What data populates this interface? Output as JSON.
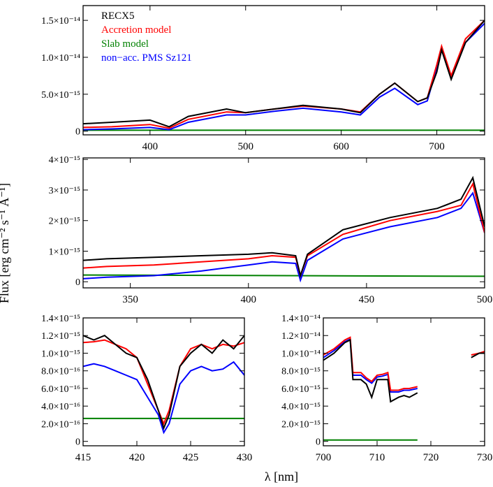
{
  "figure": {
    "ylabel": "Flux [erg cm⁻² s⁻¹ Å⁻¹]",
    "xlabel": "λ [nm]"
  },
  "colors": {
    "observed": "#000000",
    "accretion": "#ff0000",
    "slab": "#008000",
    "pms": "#0000ff"
  },
  "chart_data": [
    {
      "type": "line",
      "panel": "top",
      "xlim": [
        330,
        750
      ],
      "ylim": [
        -5e-16,
        1.7e-14
      ],
      "xticks": [
        400,
        500,
        600,
        700
      ],
      "xtick_labels": [
        "400",
        "500",
        "600",
        "700"
      ],
      "yticks": [
        0,
        5e-15,
        1e-14,
        1.5e-14
      ],
      "ytick_labels": [
        "0",
        "5.0×10⁻¹⁵",
        "1.0×10⁻¹⁴",
        "1.5×10⁻¹⁴"
      ],
      "legend": {
        "placement": "top-left",
        "entries": [
          "RECX5",
          "Accretion model",
          "Slab model",
          "non−acc. PMS Sz121"
        ]
      },
      "series": [
        {
          "name": "RECX5",
          "color": "#000000",
          "x": [
            330,
            360,
            400,
            420,
            440,
            480,
            500,
            530,
            560,
            600,
            620,
            640,
            656,
            680,
            690,
            700,
            705,
            715,
            730,
            750
          ],
          "y": [
            1e-15,
            1.2e-15,
            1.5e-15,
            6e-16,
            2e-15,
            3e-15,
            2.5e-15,
            3e-15,
            3.5e-15,
            3e-15,
            2.5e-15,
            5e-15,
            6.5e-15,
            4e-15,
            4.5e-15,
            8e-15,
            1.1e-14,
            7e-15,
            1.2e-14,
            1.5e-14
          ]
        },
        {
          "name": "Accretion model",
          "color": "#ff0000",
          "x": [
            330,
            360,
            400,
            420,
            440,
            480,
            500,
            530,
            560,
            600,
            620,
            640,
            656,
            680,
            690,
            700,
            705,
            715,
            730,
            750
          ],
          "y": [
            5e-16,
            6e-16,
            9e-16,
            4e-16,
            1.6e-15,
            2.6e-15,
            2.5e-15,
            3e-15,
            3.4e-15,
            3e-15,
            2.6e-15,
            5e-15,
            6.5e-15,
            4e-15,
            4.5e-15,
            9e-15,
            1.15e-14,
            7.5e-15,
            1.25e-14,
            1.5e-14
          ]
        },
        {
          "name": "Slab model",
          "color": "#008000",
          "x": [
            330,
            750
          ],
          "y": [
            1.2e-16,
            1.2e-16
          ]
        },
        {
          "name": "non−acc. PMS Sz121",
          "color": "#0000ff",
          "x": [
            330,
            360,
            400,
            420,
            440,
            480,
            500,
            530,
            560,
            600,
            620,
            640,
            656,
            680,
            690,
            700,
            705,
            715,
            730,
            750
          ],
          "y": [
            2e-16,
            3e-16,
            5e-16,
            2e-16,
            1.2e-15,
            2.2e-15,
            2.2e-15,
            2.7e-15,
            3.1e-15,
            2.6e-15,
            2.2e-15,
            4.6e-15,
            5.8e-15,
            3.6e-15,
            4.1e-15,
            8.6e-15,
            1.1e-14,
            7.2e-15,
            1.2e-14,
            1.46e-14
          ]
        }
      ]
    },
    {
      "type": "line",
      "panel": "middle",
      "xlim": [
        330,
        500
      ],
      "ylim": [
        -2e-16,
        4.05e-15
      ],
      "xticks": [
        350,
        400,
        450,
        500
      ],
      "xtick_labels": [
        "350",
        "400",
        "450",
        "500"
      ],
      "yticks": [
        0,
        1e-15,
        2e-15,
        3e-15,
        4e-15
      ],
      "ytick_labels": [
        "0",
        "1×10⁻¹⁵",
        "2×10⁻¹⁵",
        "3×10⁻¹⁵",
        "4×10⁻¹⁵"
      ],
      "series": [
        {
          "name": "RECX5",
          "color": "#000000",
          "x": [
            330,
            340,
            360,
            380,
            400,
            410,
            420,
            422,
            425,
            440,
            460,
            480,
            490,
            495,
            500
          ],
          "y": [
            7e-16,
            7.5e-16,
            8e-16,
            8.5e-16,
            9e-16,
            9.5e-16,
            8.5e-16,
            2e-16,
            9e-16,
            1.7e-15,
            2.1e-15,
            2.4e-15,
            2.7e-15,
            3.4e-15,
            1.8e-15
          ]
        },
        {
          "name": "Accretion model",
          "color": "#ff0000",
          "x": [
            330,
            340,
            360,
            380,
            400,
            410,
            420,
            422,
            425,
            440,
            460,
            480,
            490,
            495,
            500
          ],
          "y": [
            4.5e-16,
            5e-16,
            5.5e-16,
            6.5e-16,
            7.5e-16,
            8.5e-16,
            8e-16,
            2e-16,
            8.5e-16,
            1.55e-15,
            2e-15,
            2.3e-15,
            2.5e-15,
            3.2e-15,
            1.6e-15
          ]
        },
        {
          "name": "Slab model",
          "color": "#008000",
          "x": [
            330,
            500
          ],
          "y": [
            2.2e-16,
            1.8e-16
          ]
        },
        {
          "name": "non−acc. PMS Sz121",
          "color": "#0000ff",
          "x": [
            330,
            340,
            360,
            380,
            400,
            410,
            420,
            422,
            425,
            440,
            460,
            480,
            490,
            495,
            500
          ],
          "y": [
            1e-16,
            1.5e-16,
            2e-16,
            3.5e-16,
            5.5e-16,
            6.5e-16,
            6e-16,
            5e-17,
            7e-16,
            1.4e-15,
            1.8e-15,
            2.1e-15,
            2.4e-15,
            2.9e-15,
            1.6e-15
          ]
        }
      ]
    },
    {
      "type": "line",
      "panel": "bottom-left",
      "xlim": [
        415,
        430
      ],
      "ylim": [
        -5e-17,
        1.4e-15
      ],
      "xticks": [
        415,
        420,
        425,
        430
      ],
      "xtick_labels": [
        "415",
        "420",
        "425",
        "430"
      ],
      "yticks": [
        0,
        2e-16,
        4e-16,
        6e-16,
        8e-16,
        1e-15,
        1.2e-15,
        1.4e-15
      ],
      "ytick_labels": [
        "0",
        "2.0×10⁻¹⁶",
        "4.0×10⁻¹⁶",
        "6.0×10⁻¹⁶",
        "8.0×10⁻¹⁶",
        "1.0×10⁻¹⁵",
        "1.2×10⁻¹⁵",
        "1.4×10⁻¹⁵"
      ],
      "series": [
        {
          "name": "RECX5",
          "color": "#000000",
          "x": [
            415,
            416,
            417,
            418,
            419,
            420,
            421,
            422,
            422.5,
            423,
            424,
            425,
            426,
            427,
            428,
            429,
            430
          ],
          "y": [
            1.2e-15,
            1.15e-15,
            1.2e-15,
            1.1e-15,
            1e-15,
            9.5e-16,
            7e-16,
            3.5e-16,
            1.5e-16,
            3e-16,
            8.5e-16,
            1e-15,
            1.1e-15,
            1e-15,
            1.15e-15,
            1.05e-15,
            1.2e-15
          ]
        },
        {
          "name": "Accretion model",
          "color": "#ff0000",
          "x": [
            415,
            416,
            417,
            418,
            419,
            420,
            421,
            422,
            422.5,
            423,
            424,
            425,
            426,
            427,
            428,
            429,
            430
          ],
          "y": [
            1.12e-15,
            1.13e-15,
            1.15e-15,
            1.1e-15,
            1.05e-15,
            9.5e-16,
            6.5e-16,
            3.5e-16,
            2e-16,
            3.5e-16,
            8.5e-16,
            1.05e-15,
            1.1e-15,
            1.05e-15,
            1.1e-15,
            1.08e-15,
            1.12e-15
          ]
        },
        {
          "name": "Slab model",
          "color": "#008000",
          "x": [
            415,
            430
          ],
          "y": [
            2.6e-16,
            2.6e-16
          ]
        },
        {
          "name": "non−acc. PMS Sz121",
          "color": "#0000ff",
          "x": [
            415,
            416,
            417,
            418,
            419,
            420,
            421,
            422,
            422.5,
            423,
            424,
            425,
            426,
            427,
            428,
            429,
            430
          ],
          "y": [
            8.5e-16,
            8.8e-16,
            8.5e-16,
            8e-16,
            7.5e-16,
            7e-16,
            5e-16,
            3e-16,
            1e-16,
            2e-16,
            6.5e-16,
            8e-16,
            8.5e-16,
            8e-16,
            8.2e-16,
            9e-16,
            7.5e-16
          ]
        }
      ]
    },
    {
      "type": "line",
      "panel": "bottom-right",
      "xlim": [
        700,
        730
      ],
      "ylim": [
        -5e-16,
        1.4e-14
      ],
      "xticks": [
        700,
        710,
        720,
        730
      ],
      "xtick_labels": [
        "700",
        "710",
        "720",
        "730"
      ],
      "yticks": [
        0,
        2e-15,
        4e-15,
        6e-15,
        8e-15,
        1e-14,
        1.2e-14,
        1.4e-14
      ],
      "ytick_labels": [
        "0",
        "2.0×10⁻¹⁵",
        "4.0×10⁻¹⁵",
        "6.0×10⁻¹⁵",
        "8.0×10⁻¹⁵",
        "1.0×10⁻¹⁴",
        "1.2×10⁻¹⁴",
        "1.4×10⁻¹⁴"
      ],
      "series": [
        {
          "name": "RECX5",
          "color": "#000000",
          "x": [
            700,
            702,
            704,
            705,
            705.5,
            707,
            708,
            709,
            710,
            711,
            712,
            712.5,
            714,
            715,
            716,
            717.5
          ],
          "y": [
            9.2e-15,
            1e-14,
            1.12e-14,
            1.15e-14,
            7e-15,
            7e-15,
            6.5e-15,
            5e-15,
            7e-15,
            7e-15,
            7e-15,
            4.5e-15,
            5e-15,
            5.2e-15,
            5e-15,
            5.5e-15
          ]
        },
        {
          "name": "Accretion model",
          "color": "#ff0000",
          "x": [
            700,
            702,
            704,
            705,
            705.5,
            707,
            708,
            709,
            710,
            711,
            712,
            712.5,
            714,
            715,
            716,
            717.5
          ],
          "y": [
            9.8e-15,
            1.05e-14,
            1.15e-14,
            1.18e-14,
            7.8e-15,
            7.8e-15,
            7.2e-15,
            6.8e-15,
            7.5e-15,
            7.6e-15,
            7.8e-15,
            5.8e-15,
            5.8e-15,
            6e-15,
            6e-15,
            6.2e-15
          ]
        },
        {
          "name": "Slab model",
          "color": "#008000",
          "x": [
            700,
            717.5
          ],
          "y": [
            1.5e-16,
            1.5e-16
          ]
        },
        {
          "name": "non−acc. PMS Sz121",
          "color": "#0000ff",
          "x": [
            700,
            702,
            704,
            705,
            705.5,
            707,
            708,
            709,
            710,
            711,
            712,
            712.5,
            714,
            715,
            716,
            717.5
          ],
          "y": [
            9.5e-15,
            1.03e-14,
            1.13e-14,
            1.16e-14,
            7.5e-15,
            7.5e-15,
            7e-15,
            6.6e-15,
            7.3e-15,
            7.4e-15,
            7.6e-15,
            5.6e-15,
            5.6e-15,
            5.8e-15,
            5.8e-15,
            6e-15
          ]
        }
      ],
      "extra_segment": {
        "x": [
          727.5,
          729,
          730
        ],
        "y_observed": [
          9.5e-15,
          1e-14,
          1e-14
        ],
        "y_model": [
          9.8e-15,
          1e-14,
          1.02e-14
        ]
      }
    }
  ]
}
